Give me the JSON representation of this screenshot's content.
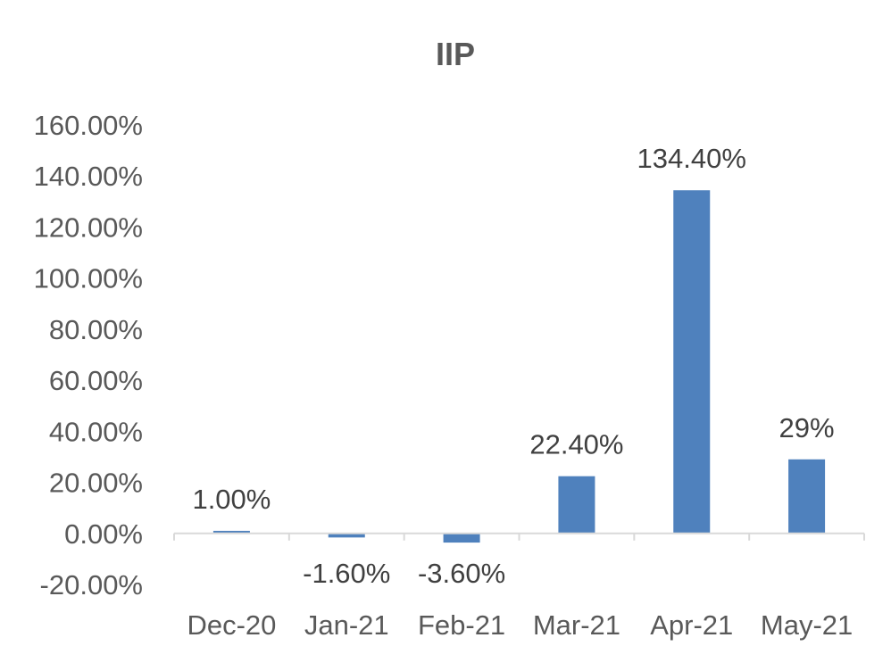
{
  "chart_data": {
    "type": "bar",
    "title": "IIP",
    "xlabel": "",
    "ylabel": "",
    "categories": [
      "Dec-20",
      "Jan-21",
      "Feb-21",
      "Mar-21",
      "Apr-21",
      "May-21"
    ],
    "values": [
      1.0,
      -1.6,
      -3.6,
      22.4,
      134.4,
      29.0
    ],
    "data_labels": [
      "1.00%",
      "-1.60%",
      "-3.60%",
      "22.40%",
      "134.40%",
      "29%"
    ],
    "ylim": [
      -20,
      160
    ],
    "yticks": [
      -20,
      0,
      20,
      40,
      60,
      80,
      100,
      120,
      140,
      160
    ],
    "ytick_labels": [
      "-20.00%",
      "0.00%",
      "20.00%",
      "40.00%",
      "60.00%",
      "80.00%",
      "100.00%",
      "120.00%",
      "140.00%",
      "160.00%"
    ],
    "grid": false,
    "legend": "none",
    "bar_color": "#4F81BD",
    "axis_color": "#D9D9D9"
  }
}
